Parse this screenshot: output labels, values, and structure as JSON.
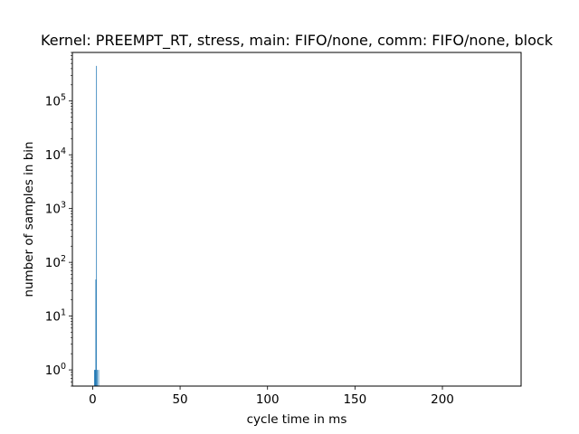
{
  "chart_data": {
    "type": "bar",
    "title": "Kernel: PREEMPT_RT, stress, main: FIFO/none, comm: FIFO/none, block",
    "xlabel": "cycle time in ms",
    "ylabel": "number of samples in bin",
    "xlim": [
      -11.6,
      245
    ],
    "ylim": [
      0.5,
      800000
    ],
    "yscale": "log",
    "grid": false,
    "legend": "none",
    "bar_color": "#1f77b4",
    "x_ticks": [
      {
        "value": 0,
        "label": "0"
      },
      {
        "value": 50,
        "label": "50"
      },
      {
        "value": 100,
        "label": "100"
      },
      {
        "value": 150,
        "label": "150"
      },
      {
        "value": 200,
        "label": "200"
      }
    ],
    "y_ticks": [
      {
        "value": 1,
        "base": "10",
        "exp": "0"
      },
      {
        "value": 10,
        "base": "10",
        "exp": "1"
      },
      {
        "value": 100,
        "base": "10",
        "exp": "2"
      },
      {
        "value": 1000,
        "base": "10",
        "exp": "3"
      },
      {
        "value": 10000,
        "base": "10",
        "exp": "4"
      },
      {
        "value": 100000,
        "base": "10",
        "exp": "5"
      }
    ],
    "bins": [
      {
        "x0": 0.8,
        "x1": 1.2,
        "value": 1
      },
      {
        "x0": 1.2,
        "x1": 1.6,
        "value": 1
      },
      {
        "x0": 1.6,
        "x1": 2.0,
        "value": 48
      },
      {
        "x0": 2.0,
        "x1": 2.4,
        "value": 450000
      },
      {
        "x0": 2.4,
        "x1": 2.8,
        "value": 1
      },
      {
        "x0": 3.2,
        "x1": 3.6,
        "value": 1
      }
    ]
  }
}
